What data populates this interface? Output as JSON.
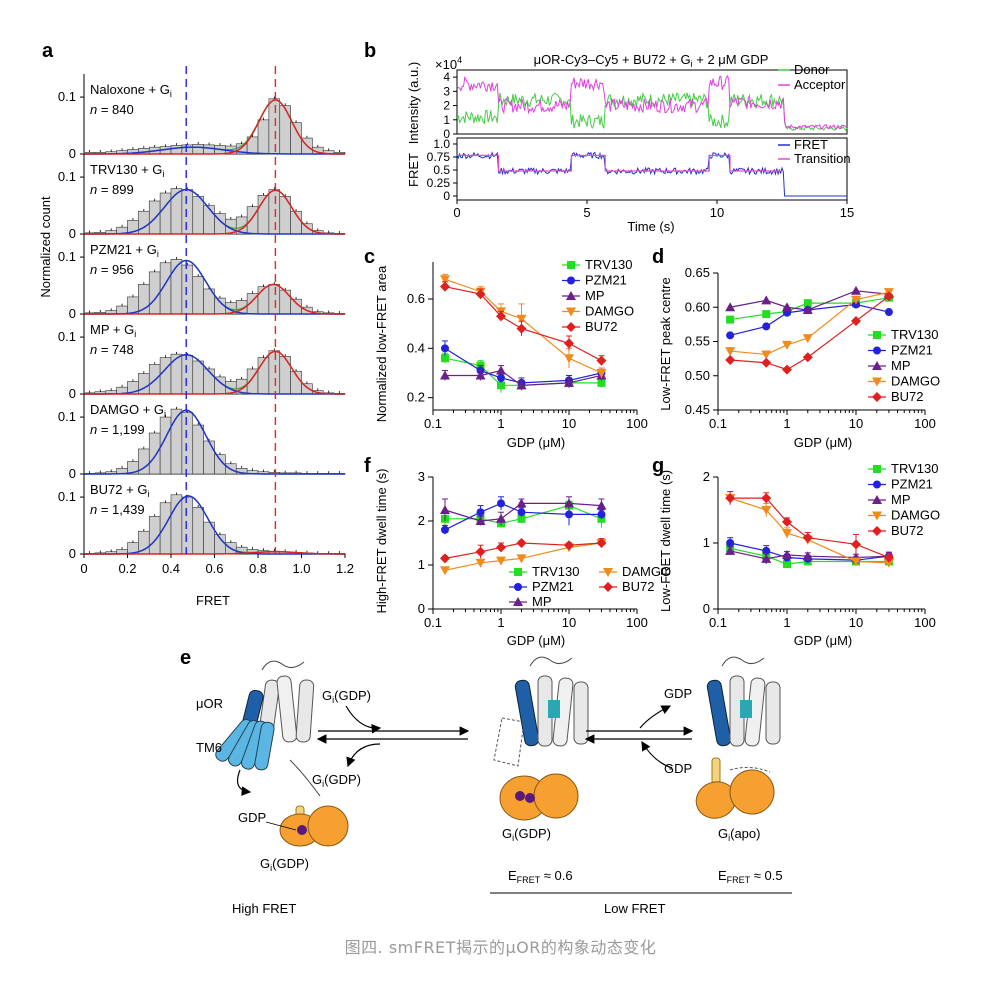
{
  "caption": "图四. smFRET揭示的μOR的构象动态变化",
  "colors": {
    "TRV130": "#22dd22",
    "PZM21": "#2222dd",
    "MP": "#6a1f8a",
    "DAMGO": "#f08a1c",
    "BU72": "#e01f1f",
    "donor": "#44cc44",
    "acceptor": "#e040e0",
    "fret": "#2233cc",
    "transition": "#e050c0",
    "hist_fill": "#cfcfcf",
    "blue_fit": "#2233cc",
    "red_fit": "#dd2222",
    "green_fit": "#33aa33"
  },
  "panel_labels": {
    "a": "a",
    "b": "b",
    "c": "c",
    "d": "d",
    "e": "e",
    "f": "f",
    "g": "g"
  },
  "panel_a": {
    "ylabel": "Normalized count",
    "xlabel": "FRET",
    "xticks": [
      "0",
      "0.2",
      "0.4",
      "0.6",
      "0.8",
      "1.0",
      "1.2"
    ],
    "ytick_top": "0.1",
    "ytick_zero": "0",
    "rows": [
      {
        "name": "Naloxone + G",
        "sub": "i",
        "n_prefix": "n",
        "n_value": " = 840"
      },
      {
        "name": "TRV130 + G",
        "sub": "i",
        "n_prefix": "n",
        "n_value": " = 899"
      },
      {
        "name": "PZM21 + G",
        "sub": "i",
        "n_prefix": "n",
        "n_value": " = 956"
      },
      {
        "name": "MP + G",
        "sub": "i",
        "n_prefix": "n",
        "n_value": " = 748"
      },
      {
        "name": "DAMGO + G",
        "sub": "i",
        "n_prefix": "n",
        "n_value": " = 1,199"
      },
      {
        "name": "BU72 + G",
        "sub": "i",
        "n_prefix": "n",
        "n_value": " = 1,439"
      }
    ]
  },
  "panel_b": {
    "title_pre": "μOR-Cy3–Cy5 + BU72 + G",
    "title_sub": "i",
    "title_post": " + 2 μM GDP",
    "top_ylabel": "Intensity (a.u.)",
    "top_yticks": [
      "4",
      "3",
      "2",
      "1",
      "0"
    ],
    "top_multiplier": "×10",
    "top_multiplier_exp": "4",
    "legend_top": [
      "Donor",
      "Acceptor"
    ],
    "bottom_ylabel": "FRET",
    "bottom_yticks": [
      "1.0",
      "0.75",
      "0.5",
      "0.25",
      "0"
    ],
    "legend_bottom": [
      "FRET",
      "Transition"
    ],
    "xticks": [
      "0",
      "5",
      "10",
      "15"
    ],
    "xlabel": "Time (s)"
  },
  "gdp_axis": {
    "xticks": [
      "0.1",
      "1",
      "10",
      "100"
    ],
    "xlabel": "GDP (μM)"
  },
  "panel_c": {
    "ylabel": "Normalized low-FRET area",
    "yticks": [
      "0.2",
      "0.4",
      "0.6"
    ]
  },
  "panel_d": {
    "ylabel": "Low-FRET peak centre",
    "yticks": [
      "0.45",
      "0.50",
      "0.55",
      "0.60",
      "0.65"
    ]
  },
  "panel_f": {
    "ylabel": "High-FRET dwell time (s)",
    "yticks": [
      "0",
      "1",
      "2",
      "3"
    ]
  },
  "panel_g": {
    "ylabel": "Low-FRET dwell time (s)",
    "yticks": [
      "0",
      "1",
      "2"
    ]
  },
  "panel_e": {
    "uor": "μOR",
    "tm6": "TM6",
    "gi_gdp_pre": "G",
    "gi_sub": "i",
    "gi_gdp_post": "(GDP)",
    "gi_apo_post": "(apo)",
    "gdp": "GDP",
    "e_fret_pre": "E",
    "e_fret_sub": "FRET",
    "e_fret_06": " ≈ 0.6",
    "e_fret_05": " ≈ 0.5",
    "high_fret": "High FRET",
    "low_fret": "Low FRET"
  },
  "chart_data": [
    {
      "panel": "a",
      "type": "bar",
      "x_categories": [
        0.025,
        0.075,
        0.125,
        0.175,
        0.225,
        0.275,
        0.325,
        0.375,
        0.425,
        0.475,
        0.525,
        0.575,
        0.625,
        0.675,
        0.725,
        0.775,
        0.825,
        0.875,
        0.925,
        0.975,
        1.025,
        1.075,
        1.125,
        1.175
      ],
      "x_range": [
        0,
        1.2
      ],
      "y_range": [
        0,
        0.13
      ],
      "vlines": [
        {
          "x": 0.47,
          "color": "blue"
        },
        {
          "x": 0.88,
          "color": "red"
        }
      ],
      "series": [
        {
          "name": "Naloxone + Gi",
          "values": [
            0.003,
            0.003,
            0.004,
            0.006,
            0.008,
            0.01,
            0.012,
            0.013,
            0.015,
            0.016,
            0.017,
            0.016,
            0.015,
            0.014,
            0.018,
            0.03,
            0.06,
            0.097,
            0.085,
            0.055,
            0.028,
            0.012,
            0.006,
            0.003
          ],
          "error": 0.004
        },
        {
          "name": "TRV130 + Gi",
          "values": [
            0.002,
            0.003,
            0.006,
            0.012,
            0.024,
            0.04,
            0.058,
            0.072,
            0.08,
            0.078,
            0.066,
            0.05,
            0.036,
            0.026,
            0.03,
            0.048,
            0.068,
            0.078,
            0.066,
            0.04,
            0.018,
            0.006,
            0.002,
            0.001
          ],
          "error": 0.004
        },
        {
          "name": "PZM21 + Gi",
          "values": [
            0.002,
            0.003,
            0.006,
            0.014,
            0.03,
            0.052,
            0.074,
            0.09,
            0.096,
            0.086,
            0.066,
            0.044,
            0.028,
            0.02,
            0.024,
            0.036,
            0.048,
            0.052,
            0.042,
            0.026,
            0.012,
            0.004,
            0.002,
            0.001
          ],
          "error": 0.004
        },
        {
          "name": "MP + Gi",
          "values": [
            0.002,
            0.004,
            0.006,
            0.012,
            0.022,
            0.036,
            0.052,
            0.064,
            0.07,
            0.068,
            0.058,
            0.044,
            0.03,
            0.022,
            0.026,
            0.044,
            0.064,
            0.076,
            0.066,
            0.04,
            0.018,
            0.006,
            0.002,
            0.001
          ],
          "error": 0.004
        },
        {
          "name": "DAMGO + Gi",
          "values": [
            0.001,
            0.002,
            0.004,
            0.01,
            0.022,
            0.044,
            0.072,
            0.1,
            0.114,
            0.108,
            0.086,
            0.058,
            0.034,
            0.018,
            0.01,
            0.006,
            0.004,
            0.003,
            0.002,
            0.002,
            0.001,
            0.001,
            0.001,
            0.001
          ],
          "error": 0.004
        },
        {
          "name": "BU72 + Gi",
          "values": [
            0.001,
            0.002,
            0.004,
            0.008,
            0.02,
            0.04,
            0.066,
            0.09,
            0.104,
            0.1,
            0.082,
            0.056,
            0.034,
            0.02,
            0.012,
            0.008,
            0.006,
            0.005,
            0.004,
            0.003,
            0.002,
            0.001,
            0.001,
            0.001
          ],
          "error": 0.004
        }
      ]
    },
    {
      "panel": "b",
      "type": "line",
      "x_range": [
        0,
        15
      ],
      "top": {
        "y_range_x1e4": [
          0,
          4.5
        ],
        "series": [
          {
            "name": "Donor",
            "segments": [
              [
                0,
                1.2
              ],
              [
                1.5,
                1.0
              ],
              [
                1.6,
                2.4
              ],
              [
                4.3,
                2.2
              ],
              [
                4.4,
                0.9
              ],
              [
                5.6,
                0.9
              ],
              [
                5.7,
                2.4
              ],
              [
                9.6,
                2.3
              ],
              [
                9.7,
                0.9
              ],
              [
                10.4,
                0.9
              ],
              [
                10.5,
                2.4
              ],
              [
                12.5,
                2.4
              ],
              [
                12.6,
                0.4
              ],
              [
                15,
                0.3
              ]
            ]
          },
          {
            "name": "Acceptor",
            "segments": [
              [
                0,
                3.5
              ],
              [
                1.5,
                3.6
              ],
              [
                1.6,
                2.0
              ],
              [
                4.3,
                2.1
              ],
              [
                4.4,
                3.6
              ],
              [
                5.6,
                3.5
              ],
              [
                5.7,
                2.0
              ],
              [
                9.6,
                2.1
              ],
              [
                9.7,
                3.6
              ],
              [
                10.4,
                3.6
              ],
              [
                10.5,
                2.2
              ],
              [
                12.5,
                2.2
              ],
              [
                12.6,
                0.5
              ],
              [
                15,
                0.5
              ]
            ]
          }
        ]
      },
      "bottom": {
        "y_range": [
          0,
          1.0
        ],
        "series": [
          {
            "name": "FRET"
          },
          {
            "name": "Transition",
            "segments": [
              [
                0,
                0.78
              ],
              [
                1.5,
                0.78
              ],
              [
                1.6,
                0.48
              ],
              [
                4.3,
                0.48
              ],
              [
                4.4,
                0.78
              ],
              [
                5.6,
                0.78
              ],
              [
                5.7,
                0.48
              ],
              [
                9.6,
                0.48
              ],
              [
                9.7,
                0.78
              ],
              [
                10.4,
                0.78
              ],
              [
                10.5,
                0.48
              ],
              [
                12.5,
                0.48
              ]
            ]
          }
        ]
      }
    },
    {
      "panel": "c",
      "type": "line",
      "x_scale": "log",
      "x_range": [
        0.1,
        100
      ],
      "y_range": [
        0.15,
        0.75
      ],
      "x": [
        0.15,
        0.5,
        1,
        2,
        10,
        30
      ],
      "series": [
        {
          "name": "TRV130",
          "values": [
            0.36,
            0.33,
            0.25,
            0.25,
            0.26,
            0.26
          ],
          "error": [
            0.02,
            0.02,
            0.03,
            0.02,
            0.02,
            0.02
          ]
        },
        {
          "name": "PZM21",
          "values": [
            0.4,
            0.31,
            0.28,
            0.26,
            0.27,
            0.3
          ],
          "error": [
            0.03,
            0.02,
            0.02,
            0.02,
            0.02,
            0.02
          ]
        },
        {
          "name": "MP",
          "values": [
            0.29,
            0.29,
            0.31,
            0.25,
            0.26,
            0.29
          ],
          "error": [
            0.02,
            0.02,
            0.02,
            0.02,
            0.02,
            0.02
          ]
        },
        {
          "name": "DAMGO",
          "values": [
            0.68,
            0.63,
            0.55,
            0.52,
            0.36,
            0.3
          ],
          "error": [
            0.02,
            0.02,
            0.03,
            0.06,
            0.04,
            0.02
          ]
        },
        {
          "name": "BU72",
          "values": [
            0.65,
            0.62,
            0.53,
            0.48,
            0.42,
            0.35
          ],
          "error": [
            0.02,
            0.02,
            0.02,
            0.03,
            0.03,
            0.02
          ]
        }
      ]
    },
    {
      "panel": "d",
      "type": "line",
      "x_scale": "log",
      "x_range": [
        0.1,
        100
      ],
      "y_range": [
        0.45,
        0.65
      ],
      "x": [
        0.15,
        0.5,
        1,
        2,
        10,
        30
      ],
      "series": [
        {
          "name": "TRV130",
          "values": [
            0.582,
            0.59,
            0.594,
            0.606,
            0.606,
            0.614
          ]
        },
        {
          "name": "PZM21",
          "values": [
            0.559,
            0.572,
            0.592,
            0.596,
            0.604,
            0.593
          ]
        },
        {
          "name": "MP",
          "values": [
            0.6,
            0.61,
            0.6,
            0.596,
            0.624,
            0.619
          ]
        },
        {
          "name": "DAMGO",
          "values": [
            0.536,
            0.531,
            0.545,
            0.555,
            0.611,
            0.622
          ]
        },
        {
          "name": "BU72",
          "values": [
            0.523,
            0.519,
            0.509,
            0.527,
            0.58,
            0.616
          ]
        }
      ]
    },
    {
      "panel": "f",
      "type": "line",
      "x_scale": "log",
      "x_range": [
        0.1,
        100
      ],
      "y_range": [
        0,
        3
      ],
      "x": [
        0.15,
        0.5,
        1,
        2,
        10,
        30
      ],
      "series": [
        {
          "name": "TRV130",
          "values": [
            2.05,
            2.05,
            1.95,
            2.05,
            2.35,
            2.05
          ],
          "error": [
            0.15,
            0.1,
            0.1,
            0.1,
            0.1,
            0.2
          ]
        },
        {
          "name": "PZM21",
          "values": [
            1.8,
            2.2,
            2.4,
            2.2,
            2.15,
            2.15
          ],
          "error": [
            0.1,
            0.15,
            0.15,
            0.1,
            0.25,
            0.1
          ]
        },
        {
          "name": "MP",
          "values": [
            2.25,
            2.0,
            2.05,
            2.4,
            2.4,
            2.35
          ],
          "error": [
            0.25,
            0.1,
            0.15,
            0.1,
            0.15,
            0.15
          ]
        },
        {
          "name": "DAMGO",
          "values": [
            0.88,
            1.05,
            1.1,
            1.15,
            1.4,
            1.5
          ],
          "error": [
            0.05,
            0.05,
            0.05,
            0.05,
            0.05,
            0.08
          ]
        },
        {
          "name": "BU72",
          "values": [
            1.15,
            1.3,
            1.4,
            1.5,
            1.45,
            1.5
          ],
          "error": [
            0.05,
            0.15,
            0.1,
            0.05,
            0.05,
            0.1
          ]
        }
      ]
    },
    {
      "panel": "g",
      "type": "line",
      "x_scale": "log",
      "x_range": [
        0.1,
        100
      ],
      "y_range": [
        0,
        2
      ],
      "x": [
        0.15,
        0.5,
        1,
        2,
        10,
        30
      ],
      "series": [
        {
          "name": "TRV130",
          "values": [
            0.92,
            0.8,
            0.68,
            0.72,
            0.72,
            0.72
          ],
          "error": [
            0.05,
            0.05,
            0.04,
            0.04,
            0.04,
            0.04
          ]
        },
        {
          "name": "PZM21",
          "values": [
            1.0,
            0.88,
            0.78,
            0.76,
            0.74,
            0.8
          ],
          "error": [
            0.08,
            0.08,
            0.05,
            0.05,
            0.05,
            0.06
          ]
        },
        {
          "name": "MP",
          "values": [
            0.88,
            0.76,
            0.82,
            0.8,
            0.78,
            0.8
          ],
          "error": [
            0.06,
            0.08,
            0.05,
            0.05,
            0.05,
            0.06
          ]
        },
        {
          "name": "DAMGO",
          "values": [
            1.68,
            1.5,
            1.15,
            1.05,
            0.72,
            0.7
          ],
          "error": [
            0.1,
            0.1,
            0.08,
            0.06,
            0.05,
            0.05
          ]
        },
        {
          "name": "BU72",
          "values": [
            1.68,
            1.68,
            1.32,
            1.08,
            0.98,
            0.78
          ],
          "error": [
            0.1,
            0.08,
            0.06,
            0.08,
            0.15,
            0.06
          ]
        }
      ]
    }
  ]
}
